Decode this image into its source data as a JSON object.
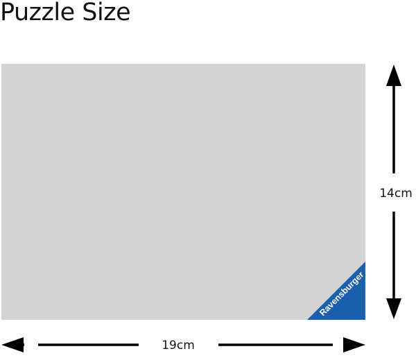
{
  "title": "Puzzle Size",
  "dimensions": {
    "width_label": "19cm",
    "height_label": "14cm"
  },
  "logo": {
    "text": "Ravensburger",
    "color": "#1a5fab"
  },
  "colors": {
    "puzzle_fill": "#d3d3d3",
    "arrow": "#000000"
  }
}
